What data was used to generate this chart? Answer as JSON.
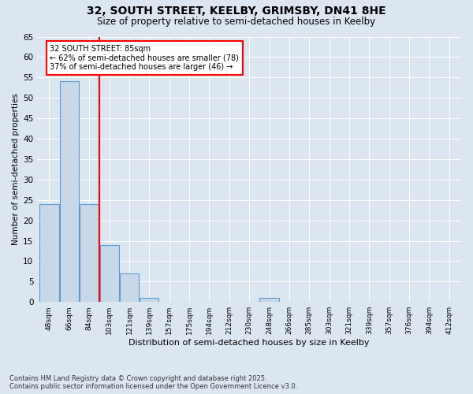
{
  "title1": "32, SOUTH STREET, KEELBY, GRIMSBY, DN41 8HE",
  "title2": "Size of property relative to semi-detached houses in Keelby",
  "xlabel": "Distribution of semi-detached houses by size in Keelby",
  "ylabel": "Number of semi-detached properties",
  "categories": [
    "48sqm",
    "66sqm",
    "84sqm",
    "103sqm",
    "121sqm",
    "139sqm",
    "157sqm",
    "175sqm",
    "194sqm",
    "212sqm",
    "230sqm",
    "248sqm",
    "266sqm",
    "285sqm",
    "303sqm",
    "321sqm",
    "339sqm",
    "357sqm",
    "376sqm",
    "394sqm",
    "412sqm"
  ],
  "values": [
    24,
    54,
    24,
    14,
    7,
    1,
    0,
    0,
    0,
    0,
    0,
    1,
    0,
    0,
    0,
    0,
    0,
    0,
    0,
    0,
    0
  ],
  "bar_color": "#c8d8e8",
  "bar_edge_color": "#5b9bd5",
  "red_line_x": 2.5,
  "annotation_title": "32 SOUTH STREET: 85sqm",
  "annotation_line1": "← 62% of semi-detached houses are smaller (78)",
  "annotation_line2": "37% of semi-detached houses are larger (46) →",
  "ylim": [
    0,
    65
  ],
  "yticks": [
    0,
    5,
    10,
    15,
    20,
    25,
    30,
    35,
    40,
    45,
    50,
    55,
    60,
    65
  ],
  "footer1": "Contains HM Land Registry data © Crown copyright and database right 2025.",
  "footer2": "Contains public sector information licensed under the Open Government Licence v3.0.",
  "bg_color": "#dce6f0",
  "plot_bg_color": "#dce6f0"
}
